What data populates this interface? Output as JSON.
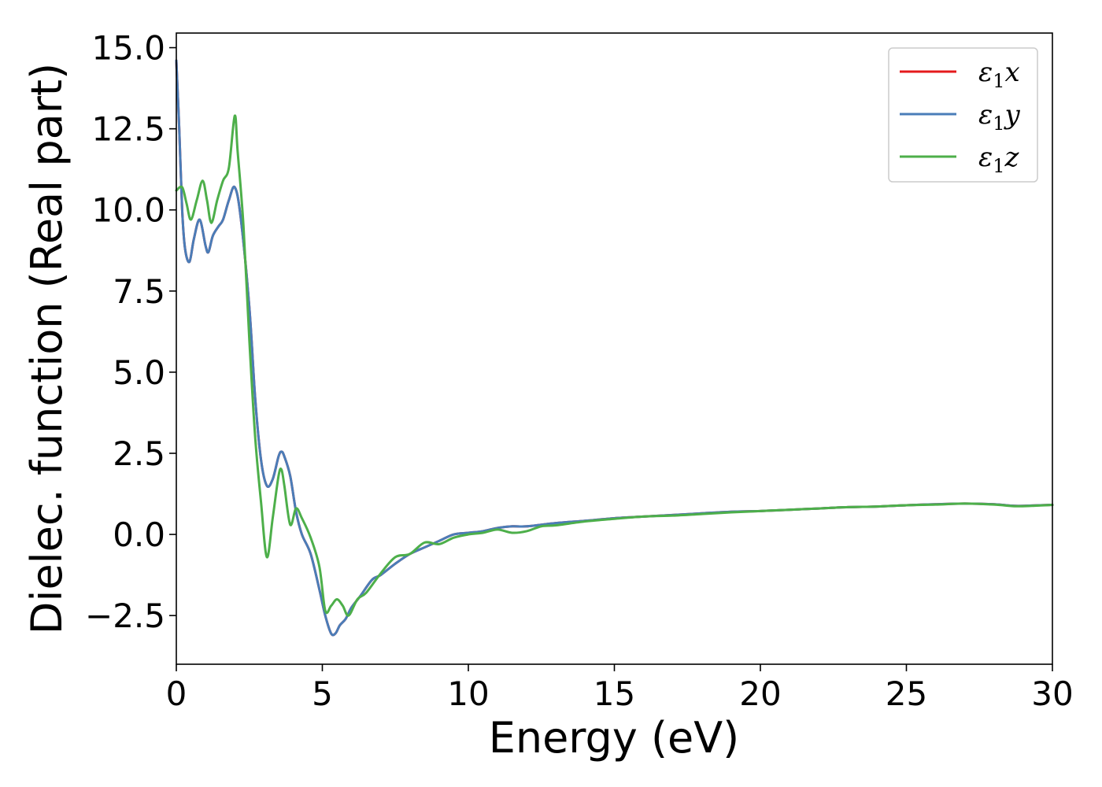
{
  "chart_data": {
    "type": "line",
    "xlabel": "Energy (eV)",
    "ylabel": "Dielec. function (Real part)",
    "xlim": [
      0,
      30
    ],
    "ylim": [
      -4.0,
      15.45
    ],
    "xticks": [
      0,
      5,
      10,
      15,
      20,
      25,
      30
    ],
    "xtick_labels": [
      "0",
      "5",
      "10",
      "15",
      "20",
      "25",
      "30"
    ],
    "yticks": [
      -2.5,
      0.0,
      2.5,
      5.0,
      7.5,
      10.0,
      12.5,
      15.0
    ],
    "ytick_labels": [
      "−2.5",
      "0.0",
      "2.5",
      "5.0",
      "7.5",
      "10.0",
      "12.5",
      "15.0"
    ],
    "grid": false,
    "legend_position": "top-right",
    "series": [
      {
        "name": "ε1x",
        "legend_base": "ε",
        "legend_sub": "1",
        "legend_suffix": "x",
        "color": "#e41a1c",
        "x": [
          0,
          0.1,
          0.2,
          0.3,
          0.45,
          0.6,
          0.8,
          1.0,
          1.1,
          1.25,
          1.45,
          1.6,
          1.8,
          2.0,
          2.2,
          2.5,
          2.7,
          2.9,
          3.1,
          3.3,
          3.5,
          3.6,
          3.7,
          3.9,
          4.1,
          4.3,
          4.6,
          4.9,
          5.1,
          5.3,
          5.45,
          5.6,
          5.8,
          6.0,
          6.3,
          6.7,
          7.0,
          7.5,
          8.0,
          8.5,
          9.0,
          9.5,
          10.0,
          10.5,
          11.0,
          11.5,
          12.0,
          13.0,
          14.0,
          15.0,
          16.0,
          17.0,
          18.0,
          19.0,
          20.0,
          21.0,
          22.0,
          23.0,
          24.0,
          25.0,
          26.0,
          27.0,
          28.0,
          28.7,
          29.3,
          30.0
        ],
        "y": [
          14.6,
          12.5,
          10.0,
          8.8,
          8.4,
          9.1,
          9.7,
          8.9,
          8.7,
          9.2,
          9.5,
          9.7,
          10.3,
          10.7,
          9.8,
          7.0,
          4.2,
          2.3,
          1.5,
          1.7,
          2.4,
          2.55,
          2.4,
          1.8,
          0.7,
          0.0,
          -0.6,
          -1.7,
          -2.5,
          -3.05,
          -3.05,
          -2.8,
          -2.6,
          -2.25,
          -1.9,
          -1.4,
          -1.25,
          -0.9,
          -0.6,
          -0.4,
          -0.2,
          0.0,
          0.05,
          0.1,
          0.2,
          0.25,
          0.25,
          0.35,
          0.42,
          0.5,
          0.55,
          0.6,
          0.65,
          0.7,
          0.72,
          0.76,
          0.8,
          0.84,
          0.86,
          0.9,
          0.93,
          0.95,
          0.93,
          0.88,
          0.89,
          0.91
        ]
      },
      {
        "name": "ε1y",
        "legend_base": "ε",
        "legend_sub": "1",
        "legend_suffix": "y",
        "color": "#4a7db8",
        "x": [
          0,
          0.1,
          0.2,
          0.3,
          0.45,
          0.6,
          0.8,
          1.0,
          1.1,
          1.25,
          1.45,
          1.6,
          1.8,
          2.0,
          2.2,
          2.5,
          2.7,
          2.9,
          3.1,
          3.3,
          3.5,
          3.6,
          3.7,
          3.9,
          4.1,
          4.3,
          4.6,
          4.9,
          5.1,
          5.3,
          5.45,
          5.6,
          5.8,
          6.0,
          6.3,
          6.7,
          7.0,
          7.5,
          8.0,
          8.5,
          9.0,
          9.5,
          10.0,
          10.5,
          11.0,
          11.5,
          12.0,
          13.0,
          14.0,
          15.0,
          16.0,
          17.0,
          18.0,
          19.0,
          20.0,
          21.0,
          22.0,
          23.0,
          24.0,
          25.0,
          26.0,
          27.0,
          28.0,
          28.7,
          29.3,
          30.0
        ],
        "y": [
          14.6,
          12.5,
          10.0,
          8.8,
          8.4,
          9.1,
          9.7,
          8.9,
          8.7,
          9.2,
          9.5,
          9.7,
          10.3,
          10.7,
          9.8,
          7.0,
          4.2,
          2.3,
          1.5,
          1.7,
          2.4,
          2.55,
          2.4,
          1.8,
          0.7,
          0.0,
          -0.6,
          -1.7,
          -2.5,
          -3.05,
          -3.05,
          -2.8,
          -2.6,
          -2.25,
          -1.9,
          -1.4,
          -1.25,
          -0.9,
          -0.6,
          -0.4,
          -0.2,
          0.0,
          0.05,
          0.1,
          0.2,
          0.25,
          0.25,
          0.35,
          0.42,
          0.5,
          0.55,
          0.6,
          0.65,
          0.7,
          0.72,
          0.76,
          0.8,
          0.84,
          0.86,
          0.9,
          0.93,
          0.95,
          0.93,
          0.88,
          0.89,
          0.91
        ]
      },
      {
        "name": "ε1z",
        "legend_base": "ε",
        "legend_sub": "1",
        "legend_suffix": "z",
        "color": "#4daf4a",
        "x": [
          0,
          0.2,
          0.35,
          0.5,
          0.7,
          0.9,
          1.05,
          1.2,
          1.4,
          1.6,
          1.8,
          2.0,
          2.1,
          2.3,
          2.5,
          2.7,
          2.9,
          3.1,
          3.3,
          3.5,
          3.6,
          3.7,
          3.9,
          4.1,
          4.3,
          4.6,
          4.9,
          5.1,
          5.3,
          5.5,
          5.7,
          5.9,
          6.2,
          6.5,
          7.0,
          7.5,
          8.0,
          8.5,
          9.0,
          9.5,
          10.0,
          10.5,
          11.0,
          11.5,
          12.0,
          12.5,
          13.0,
          14.0,
          15.0,
          16.0,
          17.0,
          18.0,
          19.0,
          20.0,
          21.0,
          22.0,
          23.0,
          24.0,
          25.0,
          26.0,
          27.0,
          28.0,
          28.7,
          29.3,
          30.0
        ],
        "y": [
          10.6,
          10.7,
          10.2,
          9.7,
          10.3,
          10.9,
          10.3,
          9.6,
          10.3,
          10.9,
          11.3,
          12.9,
          11.8,
          9.5,
          6.0,
          3.0,
          1.0,
          -0.7,
          0.5,
          1.8,
          2.0,
          1.5,
          0.3,
          0.8,
          0.5,
          -0.1,
          -1.0,
          -2.35,
          -2.2,
          -2.0,
          -2.2,
          -2.5,
          -2.0,
          -1.8,
          -1.2,
          -0.7,
          -0.6,
          -0.25,
          -0.3,
          -0.1,
          0.0,
          0.05,
          0.15,
          0.05,
          0.1,
          0.25,
          0.28,
          0.4,
          0.48,
          0.55,
          0.58,
          0.63,
          0.68,
          0.72,
          0.76,
          0.8,
          0.84,
          0.86,
          0.9,
          0.92,
          0.95,
          0.92,
          0.87,
          0.88,
          0.91
        ]
      }
    ]
  }
}
